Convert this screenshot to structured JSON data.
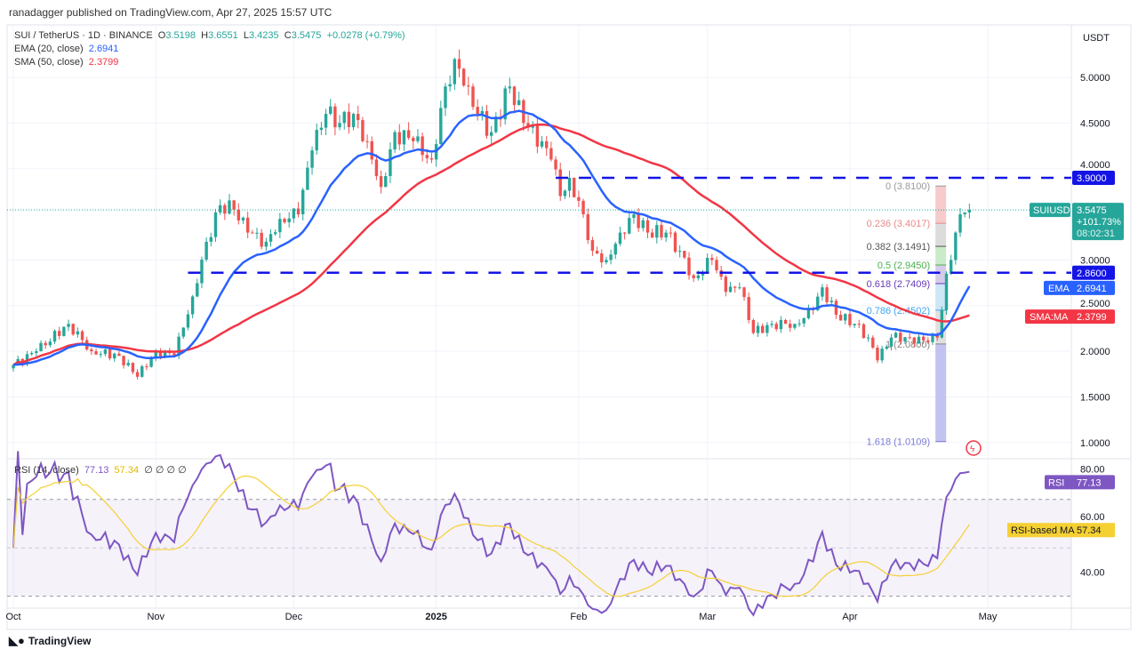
{
  "header": {
    "published": "ranadagger published on TradingView.com, Apr 27, 2025 15:57 UTC"
  },
  "legend": {
    "symbol": "SUI / TetherUS · 1D · BINANCE",
    "o_label": "O",
    "o": "3.5198",
    "h_label": "H",
    "h": "3.6551",
    "l_label": "L",
    "l": "3.4235",
    "c_label": "C",
    "c": "3.5475",
    "change": "+0.0278 (+0.79%)",
    "ema": "EMA (20, close)",
    "ema_val": "2.6941",
    "sma": "SMA (50, close)",
    "sma_val": "2.3799"
  },
  "rsi_legend": {
    "label": "RSI (14, close)",
    "rsi": "77.13",
    "ma": "57.34",
    "extra": "∅ ∅ ∅ ∅"
  },
  "footer": {
    "logo": "TradingView"
  },
  "colors": {
    "up": "#26a69a",
    "down": "#ef5350",
    "ema": "#2962ff",
    "sma": "#f23645",
    "level": "#1414e6",
    "rsi": "#7e57c2",
    "rsi_ma": "#f5d033"
  },
  "chart_data": {
    "type": "candlestick",
    "currency": "USDT",
    "y_ticks": [
      "5.0000",
      "4.5000",
      "4.0000",
      "3.0000",
      "2.5000",
      "2.0000",
      "1.5000",
      "1.0000"
    ],
    "x_ticks": [
      [
        "Oct",
        "2024-10-01"
      ],
      [
        "Nov",
        "2024-11-01"
      ],
      [
        "Dec",
        "2024-12-01"
      ],
      [
        "2025",
        "2025-01-01"
      ],
      [
        "Feb",
        "2025-02-01"
      ],
      [
        "Mar",
        "2025-03-01"
      ],
      [
        "Apr",
        "2025-04-01"
      ],
      [
        "May",
        "2025-05-01"
      ]
    ],
    "close_anchors": [
      [
        "2024-10-01",
        1.85
      ],
      [
        "2024-10-06",
        2.0
      ],
      [
        "2024-10-13",
        2.3
      ],
      [
        "2024-10-18",
        2.0
      ],
      [
        "2024-10-24",
        1.95
      ],
      [
        "2024-10-28",
        1.72
      ],
      [
        "2024-11-01",
        2.0
      ],
      [
        "2024-11-05",
        1.95
      ],
      [
        "2024-11-09",
        2.6
      ],
      [
        "2024-11-12",
        3.2
      ],
      [
        "2024-11-15",
        3.6
      ],
      [
        "2024-11-18",
        3.55
      ],
      [
        "2024-11-21",
        3.3
      ],
      [
        "2024-11-25",
        3.2
      ],
      [
        "2024-11-28",
        3.45
      ],
      [
        "2024-12-02",
        3.5
      ],
      [
        "2024-12-05",
        4.2
      ],
      [
        "2024-12-08",
        4.6
      ],
      [
        "2024-12-11",
        4.5
      ],
      [
        "2024-12-14",
        4.6
      ],
      [
        "2024-12-17",
        4.3
      ],
      [
        "2024-12-20",
        3.8
      ],
      [
        "2024-12-23",
        4.4
      ],
      [
        "2024-12-27",
        4.3
      ],
      [
        "2024-12-31",
        4.1
      ],
      [
        "2025-01-03",
        4.9
      ],
      [
        "2025-01-05",
        5.2
      ],
      [
        "2025-01-08",
        4.9
      ],
      [
        "2025-01-10",
        4.6
      ],
      [
        "2025-01-13",
        4.4
      ],
      [
        "2025-01-17",
        4.9
      ],
      [
        "2025-01-20",
        4.5
      ],
      [
        "2025-01-24",
        4.3
      ],
      [
        "2025-01-26",
        4.1
      ],
      [
        "2025-01-28",
        3.7
      ],
      [
        "2025-01-30",
        3.9
      ],
      [
        "2025-02-02",
        3.5
      ],
      [
        "2025-02-04",
        3.1
      ],
      [
        "2025-02-07",
        3.0
      ],
      [
        "2025-02-10",
        3.3
      ],
      [
        "2025-02-13",
        3.5
      ],
      [
        "2025-02-16",
        3.3
      ],
      [
        "2025-02-20",
        3.3
      ],
      [
        "2025-02-23",
        3.1
      ],
      [
        "2025-02-26",
        2.8
      ],
      [
        "2025-03-02",
        3.0
      ],
      [
        "2025-03-05",
        2.65
      ],
      [
        "2025-03-08",
        2.7
      ],
      [
        "2025-03-11",
        2.2
      ],
      [
        "2025-03-15",
        2.3
      ],
      [
        "2025-03-20",
        2.3
      ],
      [
        "2025-03-24",
        2.45
      ],
      [
        "2025-03-26",
        2.7
      ],
      [
        "2025-03-29",
        2.4
      ],
      [
        "2025-04-02",
        2.3
      ],
      [
        "2025-04-05",
        2.15
      ],
      [
        "2025-04-07",
        1.9
      ],
      [
        "2025-04-10",
        2.15
      ],
      [
        "2025-04-14",
        2.15
      ],
      [
        "2025-04-18",
        2.1
      ],
      [
        "2025-04-20",
        2.15
      ],
      [
        "2025-04-21",
        2.45
      ],
      [
        "2025-04-22",
        2.85
      ],
      [
        "2025-04-23",
        3.0
      ],
      [
        "2025-04-24",
        3.3
      ],
      [
        "2025-04-25",
        3.5
      ],
      [
        "2025-04-26",
        3.52
      ],
      [
        "2025-04-27",
        3.5475
      ]
    ],
    "horizontal_levels": [
      {
        "price": 3.9,
        "label": "3.9000",
        "from": "2025-01-27"
      },
      {
        "price": 2.86,
        "label": "2.8600",
        "from": "2024-11-08"
      }
    ],
    "fib": {
      "from": "2025-04-20",
      "levels": [
        {
          "label": "0 (3.8100)",
          "price": 3.81,
          "color": "#999999",
          "fill": "#f3c2c2"
        },
        {
          "label": "0.236 (3.4017)",
          "price": 3.4017,
          "color": "#e88a8a",
          "fill": "#d6d6d6"
        },
        {
          "label": "0.382 (3.1491)",
          "price": 3.1491,
          "color": "#555555",
          "fill": "#bfe8bf"
        },
        {
          "label": "0.5 (2.9450)",
          "price": 2.945,
          "color": "#4caf50",
          "fill": "#cfc2e6"
        },
        {
          "label": "0.618 (2.7409)",
          "price": 2.7409,
          "color": "#673ab7",
          "fill": "#c4e3f5"
        },
        {
          "label": "0.786 (2.4502)",
          "price": 2.4502,
          "color": "#42a5f5",
          "fill": "#dadada"
        },
        {
          "label": "1 (2.0800)",
          "price": 2.08,
          "color": "#888888",
          "fill": "#b9b9f0"
        },
        {
          "label": "1.618 (1.0109)",
          "price": 1.0109,
          "color": "#7b7bd8",
          "fill": null
        }
      ]
    },
    "tags": {
      "last": {
        "symbol": "SUIUSDT",
        "price": "3.5475",
        "change": "+101.73%",
        "countdown": "08:02:31"
      },
      "ema": {
        "label": "EMA",
        "value": "2.6941"
      },
      "sma": {
        "label": "SMA:MA",
        "value": "2.3799"
      }
    },
    "rsi": {
      "ticks": [
        "80.00",
        "60.00",
        "40.00"
      ],
      "upper": 70,
      "lower": 30,
      "tag": {
        "label": "RSI",
        "value": "77.13"
      },
      "ma_tag": {
        "label": "RSI-based MA",
        "value": "57.34"
      }
    }
  }
}
